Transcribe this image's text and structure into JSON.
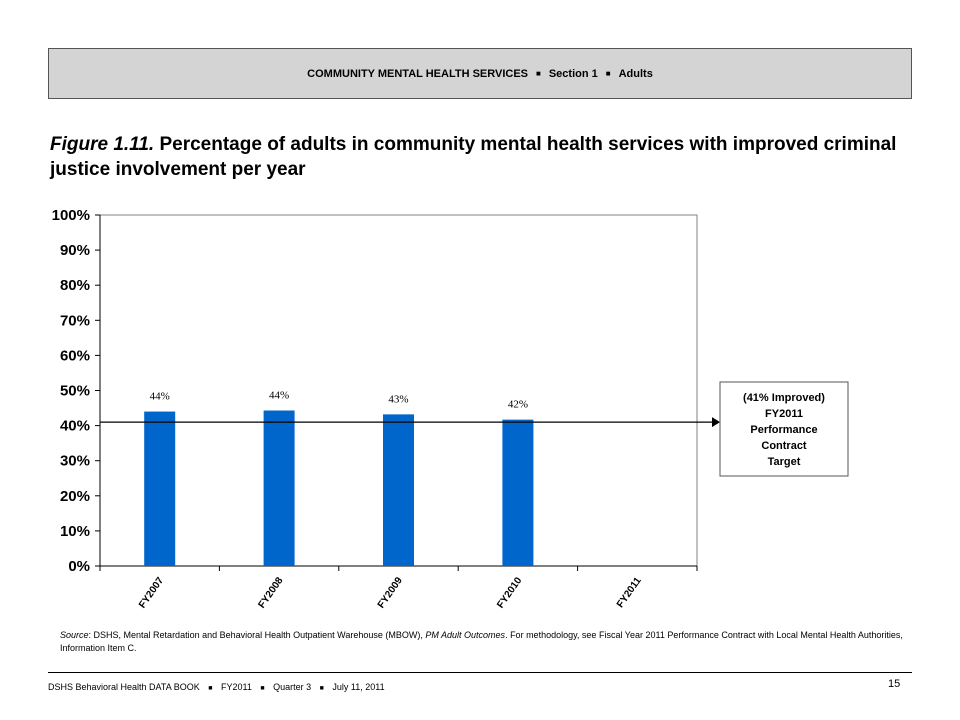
{
  "header": {
    "section_title": "COMMUNITY MENTAL HEALTH SERVICES",
    "section_number": "Section 1",
    "audience": "Adults",
    "separator": "■"
  },
  "figure": {
    "label": "Figure 1.11.",
    "title": "Percentage of adults in community mental health services with improved criminal justice involvement per year"
  },
  "chart_data": {
    "type": "bar",
    "categories": [
      "FY2007",
      "FY2008",
      "FY2009",
      "FY2010",
      "FY2011"
    ],
    "values": [
      44,
      44.3,
      43.2,
      41.7,
      null
    ],
    "data_labels": [
      "44%",
      "44%",
      "43%",
      "42%",
      ""
    ],
    "y_ticks": [
      "0%",
      "10%",
      "20%",
      "30%",
      "40%",
      "50%",
      "60%",
      "70%",
      "80%",
      "90%",
      "100%"
    ],
    "ylim": [
      0,
      100
    ],
    "bar_color": "#0066cc",
    "target": {
      "value": 41,
      "lines": [
        "(41% Improved)",
        "FY2011",
        "Performance",
        "Contract",
        "Target"
      ]
    },
    "grid": false,
    "legend": "none"
  },
  "source": {
    "label": "Source",
    "text_1": ": DSHS, Mental Retardation and Behavioral Health Outpatient Warehouse (MBOW), ",
    "report_name": "PM Adult Outcomes",
    "text_2": ". For methodology, see Fiscal Year 2011 Performance Contract with Local Mental Health Authorities, Information Item C."
  },
  "footer": {
    "publication": "DSHS Behavioral Health DATA BOOK",
    "fiscal_year": "FY2011",
    "quarter": "Quarter 3",
    "date": "July 11, 2011",
    "separator": "■",
    "page_number": "15"
  }
}
